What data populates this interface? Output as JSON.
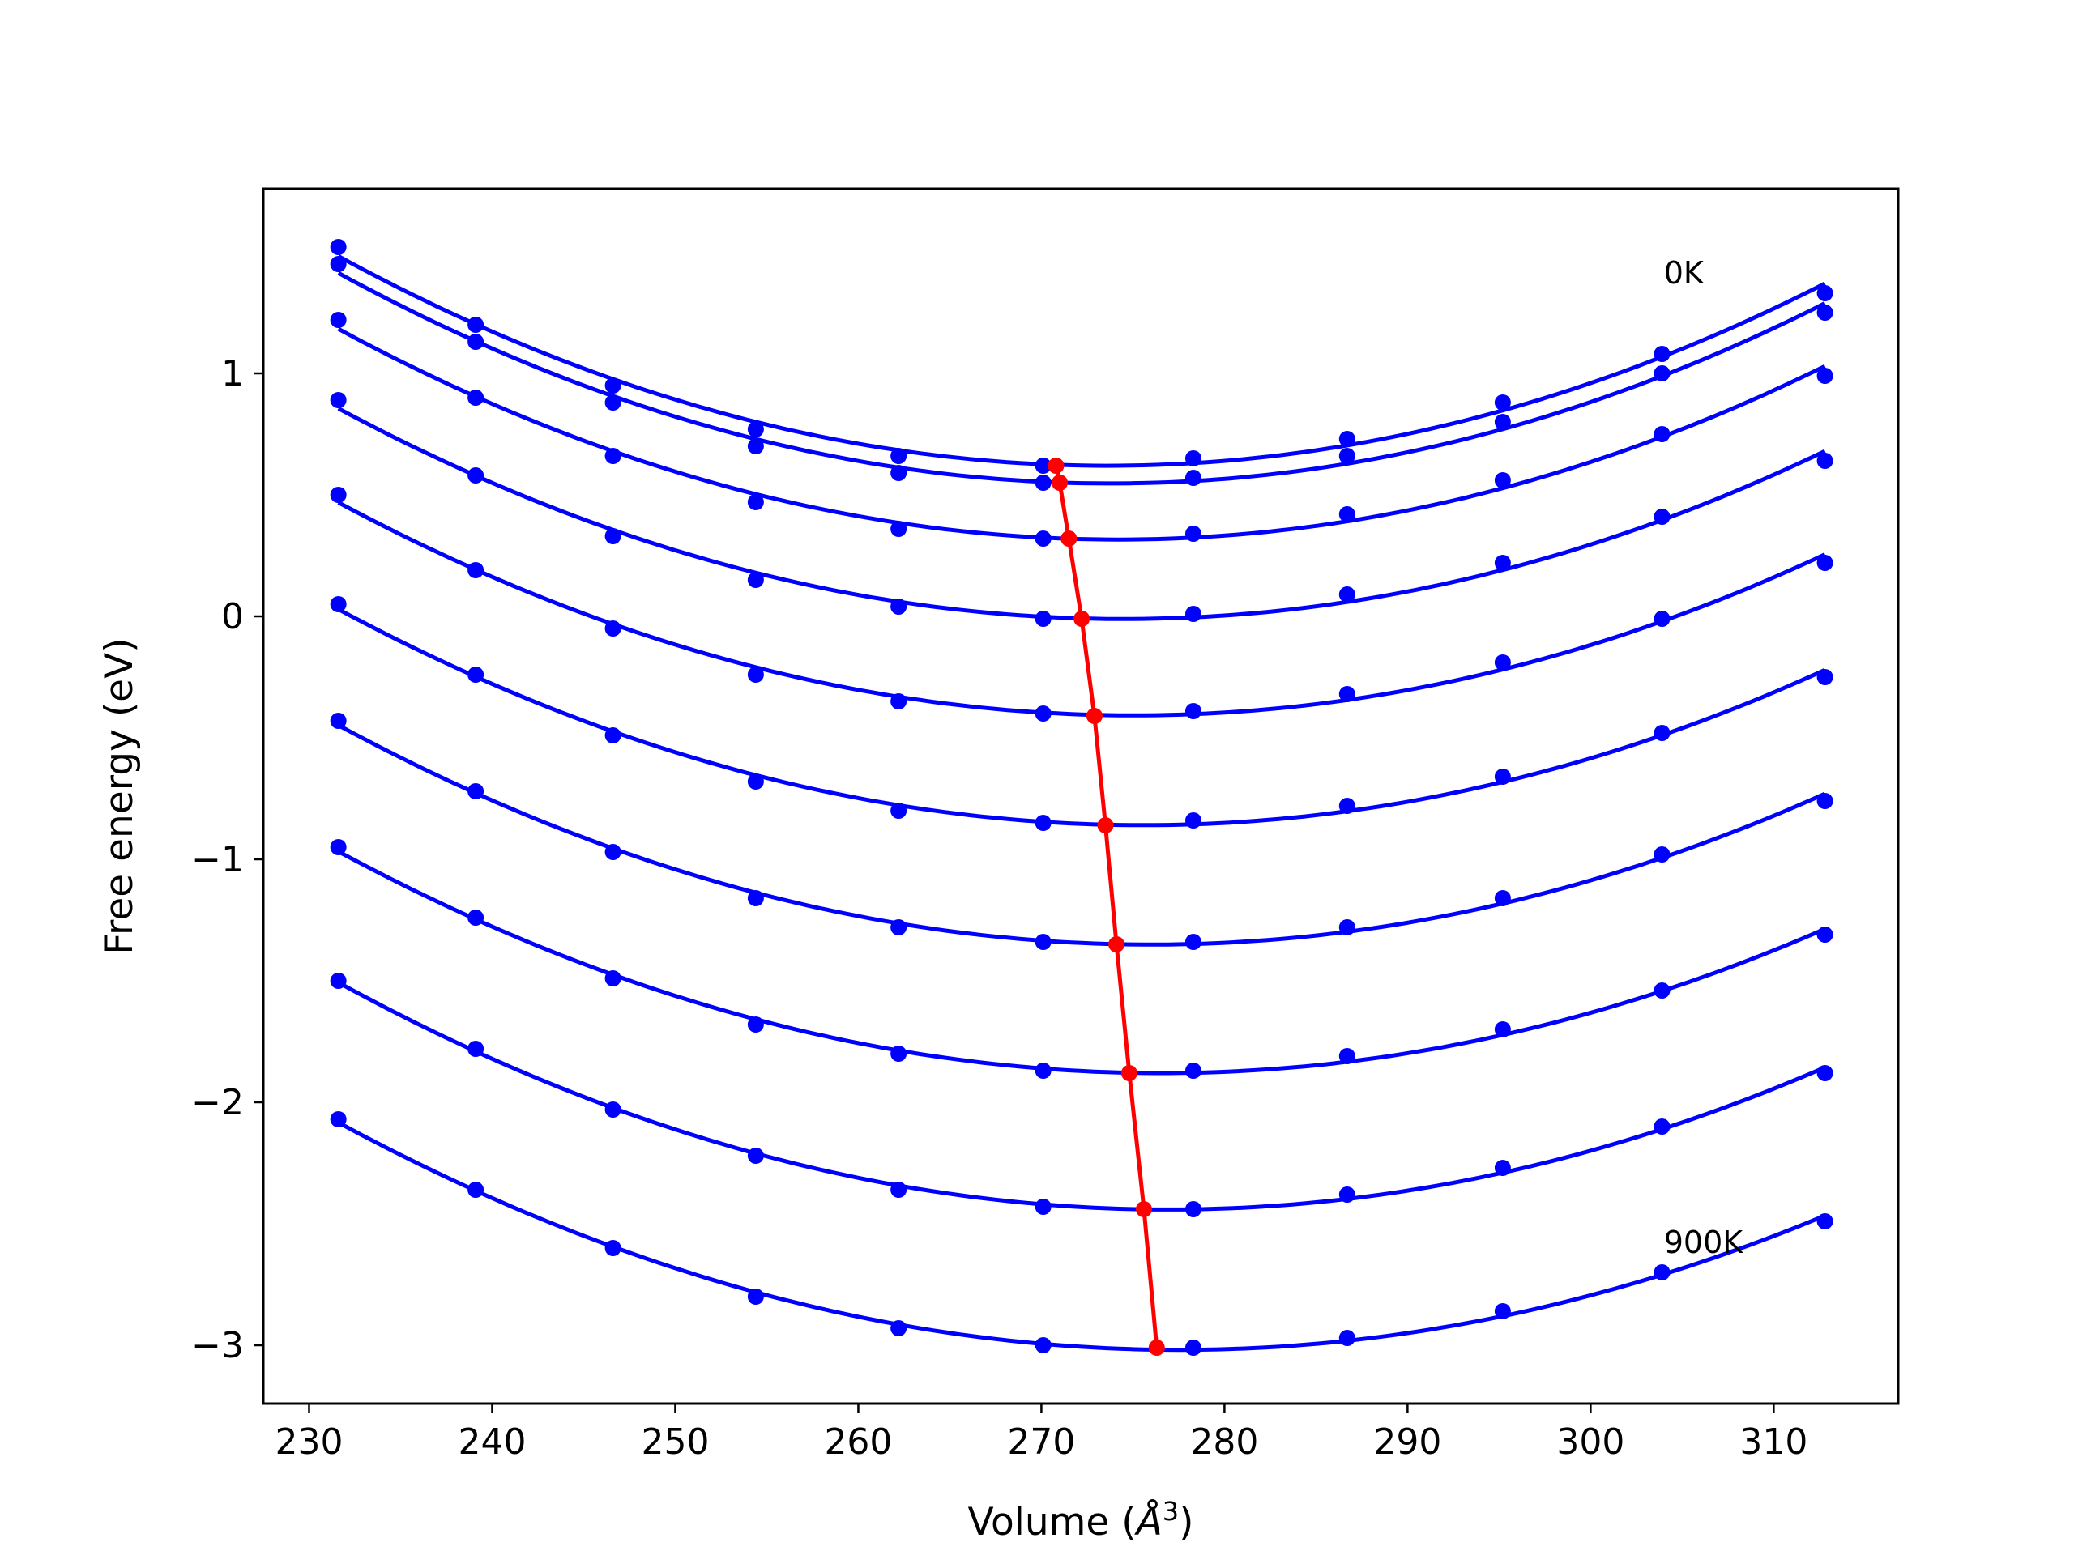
{
  "chart_data": {
    "type": "line",
    "xlabel": "Volume (",
    "xlabel_symbol": "Å",
    "xlabel_exp": "3",
    "xlabel_close": ")",
    "ylabel": "Free energy (eV)",
    "xlim": [
      227.5,
      316.8
    ],
    "ylim": [
      -3.24,
      1.76
    ],
    "xticks": [
      230,
      240,
      250,
      260,
      270,
      280,
      290,
      300,
      310
    ],
    "xtick_labels": [
      "230",
      "240",
      "250",
      "260",
      "270",
      "280",
      "290",
      "300",
      "310"
    ],
    "yticks": [
      -3,
      -2,
      -1,
      0,
      1
    ],
    "ytick_labels": [
      "−3",
      "−2",
      "−1",
      "0",
      "1"
    ],
    "annotations": [
      {
        "text": "0K",
        "x": 304.0,
        "y": 1.37
      },
      {
        "text": "900K",
        "x": 304.0,
        "y": -2.62
      }
    ],
    "series_color": "#0000ff",
    "minima_color": "#ff0000",
    "x": [
      231.6,
      239.1,
      246.6,
      254.4,
      262.2,
      270.1,
      278.3,
      286.7,
      295.2,
      303.9,
      312.8
    ],
    "series": [
      {
        "values": [
          1.52,
          1.2,
          0.95,
          0.77,
          0.66,
          0.62,
          0.65,
          0.73,
          0.88,
          1.08,
          1.33
        ]
      },
      {
        "values": [
          1.45,
          1.13,
          0.88,
          0.7,
          0.59,
          0.55,
          0.57,
          0.66,
          0.8,
          1.0,
          1.25
        ]
      },
      {
        "values": [
          1.22,
          0.9,
          0.66,
          0.47,
          0.36,
          0.32,
          0.34,
          0.42,
          0.56,
          0.75,
          0.99
        ]
      },
      {
        "values": [
          0.89,
          0.58,
          0.33,
          0.15,
          0.04,
          -0.01,
          0.01,
          0.09,
          0.22,
          0.41,
          0.64
        ]
      },
      {
        "values": [
          0.5,
          0.19,
          -0.05,
          -0.24,
          -0.35,
          -0.4,
          -0.39,
          -0.32,
          -0.19,
          -0.01,
          0.22
        ]
      },
      {
        "values": [
          0.05,
          -0.24,
          -0.49,
          -0.68,
          -0.8,
          -0.85,
          -0.84,
          -0.78,
          -0.66,
          -0.48,
          -0.25
        ]
      },
      {
        "values": [
          -0.43,
          -0.72,
          -0.97,
          -1.16,
          -1.28,
          -1.34,
          -1.34,
          -1.28,
          -1.16,
          -0.98,
          -0.76
        ]
      },
      {
        "values": [
          -0.95,
          -1.24,
          -1.49,
          -1.68,
          -1.8,
          -1.87,
          -1.87,
          -1.81,
          -1.7,
          -1.54,
          -1.31
        ]
      },
      {
        "values": [
          -1.5,
          -1.78,
          -2.03,
          -2.22,
          -2.36,
          -2.43,
          -2.44,
          -2.38,
          -2.27,
          -2.1,
          -1.88
        ]
      },
      {
        "values": [
          -2.07,
          -2.36,
          -2.6,
          -2.8,
          -2.93,
          -3.0,
          -3.01,
          -2.97,
          -2.86,
          -2.7,
          -2.49
        ]
      }
    ],
    "minima": {
      "x": [
        270.8,
        271.0,
        271.5,
        272.2,
        272.9,
        273.5,
        274.1,
        274.8,
        275.6,
        276.3
      ],
      "y": [
        0.62,
        0.55,
        0.32,
        -0.01,
        -0.41,
        -0.86,
        -1.35,
        -1.88,
        -2.44,
        -3.01
      ]
    }
  }
}
